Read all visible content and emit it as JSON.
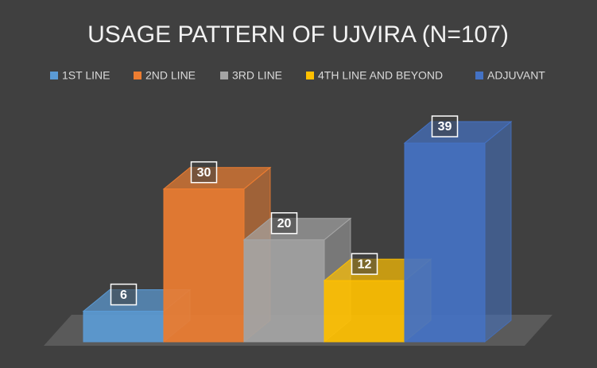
{
  "chart_data": {
    "type": "bar",
    "title": "USAGE PATTERN OF UJVIRA (N=107)",
    "categories": [
      null
    ],
    "series": [
      {
        "name": "1ST LINE",
        "color": "#5b9bd5",
        "values": [
          6
        ]
      },
      {
        "name": "2ND LINE",
        "color": "#ed7d31",
        "values": [
          30
        ]
      },
      {
        "name": "3RD LINE",
        "color": "#a5a5a5",
        "values": [
          20
        ]
      },
      {
        "name": "4TH LINE AND BEYOND",
        "color": "#ffc000",
        "values": [
          12
        ]
      },
      {
        "name": "ADJUVANT",
        "color": "#4472c4",
        "values": [
          39
        ]
      }
    ],
    "legend": "top"
  }
}
